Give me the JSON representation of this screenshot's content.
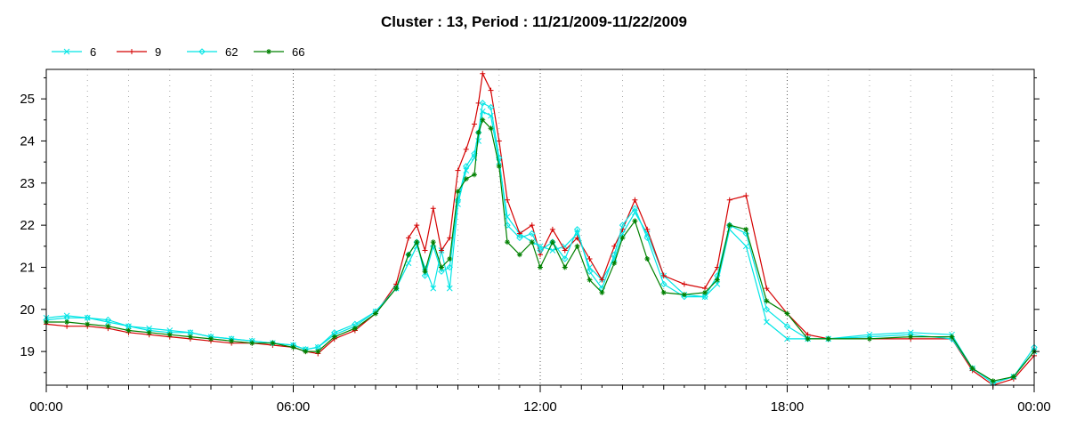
{
  "chart_data": {
    "type": "line",
    "title": "Cluster : 13, Period : 11/21/2009-11/22/2009",
    "xlabel": "",
    "ylabel": "",
    "x_start": "11/21/2009 00:00",
    "x_end": "11/22/2009 00:00",
    "x_ticks": [
      "00:00",
      "06:00",
      "12:00",
      "18:00",
      "00:00"
    ],
    "x_tick_hours": [
      0,
      6,
      12,
      18,
      24
    ],
    "y_ticks": [
      19,
      20,
      21,
      22,
      23,
      24,
      25
    ],
    "ylim": [
      18.2,
      25.7
    ],
    "grid": true,
    "legend_position": "top-left",
    "series": [
      {
        "name": "6",
        "color": "#00e5e5",
        "marker": "x",
        "hours": [
          0,
          0.5,
          1,
          1.5,
          2,
          2.5,
          3,
          3.5,
          4,
          4.5,
          5,
          5.5,
          6,
          6.3,
          6.6,
          7,
          7.5,
          8,
          8.5,
          8.8,
          9,
          9.2,
          9.4,
          9.6,
          9.8,
          10,
          10.2,
          10.4,
          10.5,
          10.6,
          10.8,
          11,
          11.2,
          11.5,
          11.8,
          12,
          12.3,
          12.6,
          12.9,
          13.2,
          13.5,
          13.8,
          14,
          14.3,
          14.6,
          15,
          15.5,
          16,
          16.3,
          16.6,
          17,
          17.5,
          18,
          18.5,
          19,
          20,
          21,
          22,
          22.5,
          23,
          23.5,
          24
        ],
        "values": [
          19.8,
          19.85,
          19.8,
          19.7,
          19.6,
          19.55,
          19.5,
          19.45,
          19.35,
          19.3,
          19.25,
          19.2,
          19.15,
          19.05,
          19.1,
          19.4,
          19.6,
          19.95,
          20.5,
          21.1,
          21.5,
          21.0,
          20.5,
          21.4,
          20.5,
          22.5,
          23.3,
          23.6,
          24.0,
          24.7,
          24.6,
          23.5,
          22.2,
          21.8,
          21.6,
          21.5,
          21.4,
          21.5,
          21.8,
          21.0,
          20.7,
          21.2,
          21.8,
          22.3,
          21.8,
          20.8,
          20.35,
          20.3,
          20.6,
          21.9,
          21.5,
          19.7,
          19.3,
          19.3,
          19.3,
          19.4,
          19.45,
          19.4,
          18.6,
          18.25,
          18.4,
          19.0
        ]
      },
      {
        "name": "9",
        "color": "#d40000",
        "marker": "plus",
        "hours": [
          0,
          0.5,
          1,
          1.5,
          2,
          2.5,
          3,
          3.5,
          4,
          4.5,
          5,
          5.5,
          6,
          6.3,
          6.6,
          7,
          7.5,
          8,
          8.5,
          8.8,
          9,
          9.2,
          9.4,
          9.6,
          9.8,
          10,
          10.2,
          10.4,
          10.5,
          10.6,
          10.8,
          11,
          11.2,
          11.5,
          11.8,
          12,
          12.3,
          12.6,
          12.9,
          13.2,
          13.5,
          13.8,
          14,
          14.3,
          14.6,
          15,
          15.5,
          16,
          16.3,
          16.6,
          17,
          17.5,
          18,
          18.5,
          19,
          20,
          21,
          22,
          22.5,
          23,
          23.5,
          24
        ],
        "values": [
          19.65,
          19.6,
          19.6,
          19.55,
          19.45,
          19.4,
          19.35,
          19.3,
          19.25,
          19.2,
          19.2,
          19.15,
          19.1,
          19.0,
          18.95,
          19.3,
          19.5,
          19.9,
          20.6,
          21.7,
          22.0,
          21.4,
          22.4,
          21.4,
          21.7,
          23.3,
          23.8,
          24.4,
          24.9,
          25.6,
          25.2,
          24.0,
          22.6,
          21.8,
          22.0,
          21.3,
          21.9,
          21.4,
          21.7,
          21.2,
          20.7,
          21.5,
          21.9,
          22.6,
          21.9,
          20.8,
          20.6,
          20.5,
          21.0,
          22.6,
          22.7,
          20.5,
          19.9,
          19.4,
          19.3,
          19.3,
          19.3,
          19.3,
          18.55,
          18.2,
          18.35,
          18.9
        ]
      },
      {
        "name": "62",
        "color": "#00e5e5",
        "marker": "diamond",
        "hours": [
          0,
          0.5,
          1,
          1.5,
          2,
          2.5,
          3,
          3.5,
          4,
          4.5,
          5,
          5.5,
          6,
          6.3,
          6.6,
          7,
          7.5,
          8,
          8.5,
          8.8,
          9,
          9.2,
          9.4,
          9.6,
          9.8,
          10,
          10.2,
          10.4,
          10.5,
          10.6,
          10.8,
          11,
          11.2,
          11.5,
          11.8,
          12,
          12.3,
          12.6,
          12.9,
          13.2,
          13.5,
          13.8,
          14,
          14.3,
          14.6,
          15,
          15.5,
          16,
          16.3,
          16.6,
          17,
          17.5,
          18,
          18.5,
          19,
          20,
          21,
          22,
          22.5,
          23,
          23.5,
          24
        ],
        "values": [
          19.75,
          19.8,
          19.8,
          19.75,
          19.6,
          19.5,
          19.45,
          19.45,
          19.35,
          19.3,
          19.25,
          19.2,
          19.15,
          19.05,
          19.1,
          19.45,
          19.65,
          19.95,
          20.5,
          21.3,
          21.6,
          20.8,
          21.5,
          20.9,
          21.0,
          22.6,
          23.4,
          23.7,
          24.2,
          24.9,
          24.8,
          23.6,
          22.0,
          21.7,
          21.8,
          21.4,
          21.6,
          21.2,
          21.9,
          20.9,
          20.5,
          21.3,
          22.0,
          22.4,
          21.7,
          20.6,
          20.3,
          20.3,
          20.8,
          22.0,
          21.8,
          20.0,
          19.6,
          19.3,
          19.3,
          19.35,
          19.4,
          19.3,
          18.6,
          18.25,
          18.4,
          19.1
        ]
      },
      {
        "name": "66",
        "color": "#008000",
        "marker": "star",
        "hours": [
          0,
          0.5,
          1,
          1.5,
          2,
          2.5,
          3,
          3.5,
          4,
          4.5,
          5,
          5.5,
          6,
          6.3,
          6.6,
          7,
          7.5,
          8,
          8.5,
          8.8,
          9,
          9.2,
          9.4,
          9.6,
          9.8,
          10,
          10.2,
          10.4,
          10.5,
          10.6,
          10.8,
          11,
          11.2,
          11.5,
          11.8,
          12,
          12.3,
          12.6,
          12.9,
          13.2,
          13.5,
          13.8,
          14,
          14.3,
          14.6,
          15,
          15.5,
          16,
          16.3,
          16.6,
          17,
          17.5,
          18,
          18.5,
          19,
          20,
          21,
          22,
          22.5,
          23,
          23.5,
          24
        ],
        "values": [
          19.7,
          19.7,
          19.65,
          19.6,
          19.5,
          19.45,
          19.4,
          19.35,
          19.3,
          19.25,
          19.2,
          19.2,
          19.1,
          19.0,
          19.0,
          19.35,
          19.55,
          19.9,
          20.5,
          21.3,
          21.6,
          20.9,
          21.6,
          21.0,
          21.2,
          22.8,
          23.1,
          23.2,
          24.2,
          24.5,
          24.3,
          23.4,
          21.6,
          21.3,
          21.6,
          21.0,
          21.6,
          21.0,
          21.5,
          20.7,
          20.4,
          21.1,
          21.7,
          22.1,
          21.2,
          20.4,
          20.35,
          20.4,
          20.7,
          22.0,
          21.9,
          20.2,
          19.9,
          19.3,
          19.3,
          19.3,
          19.35,
          19.35,
          18.6,
          18.3,
          18.4,
          19.0
        ]
      }
    ]
  }
}
